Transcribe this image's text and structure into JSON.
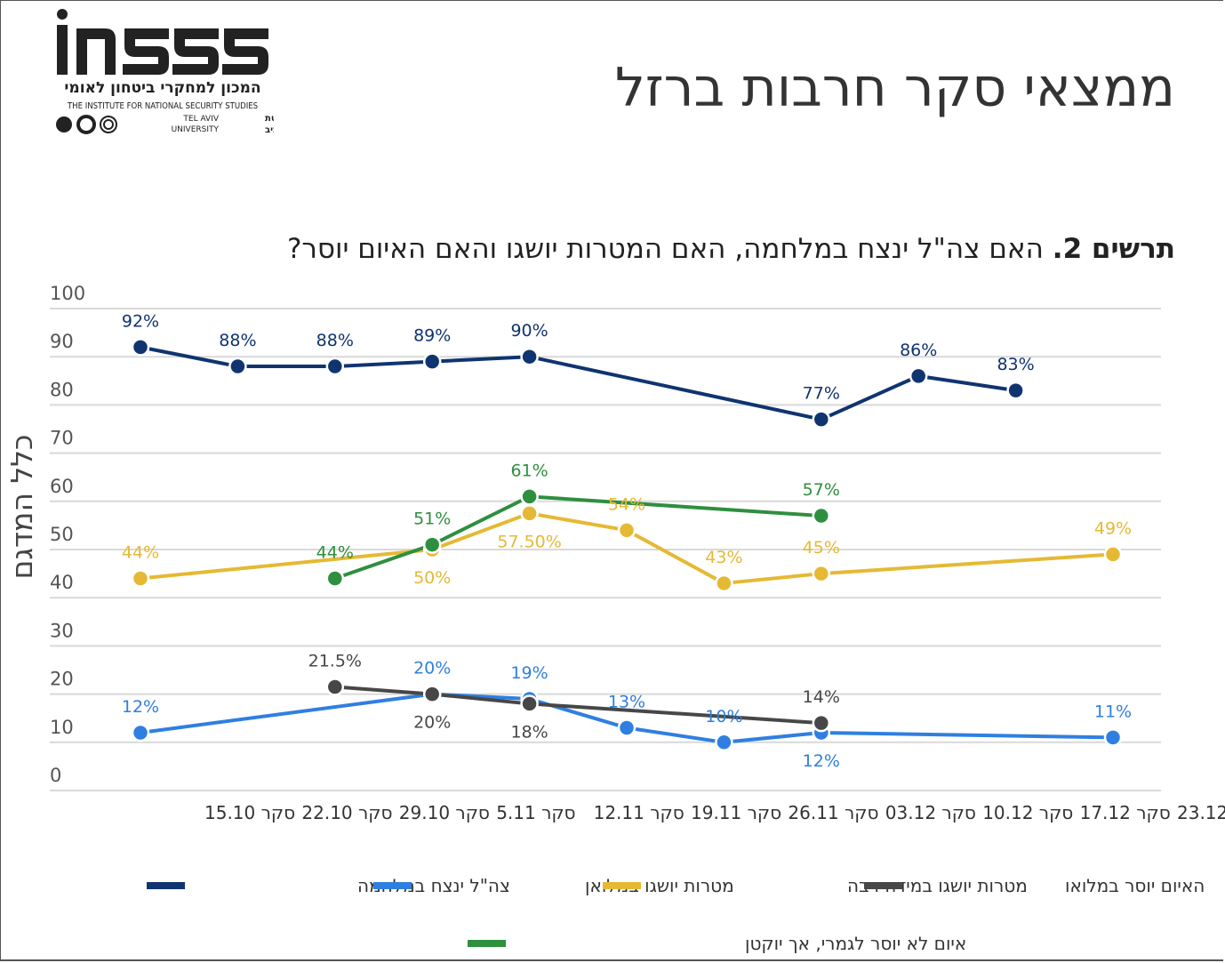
{
  "header": {
    "logo": {
      "wordmark": "INSS",
      "hebrew_name": "המכון למחקרי ביטחון לאומי",
      "english_name": "THE INSTITUTE FOR NATIONAL SECURITY STUDIES",
      "university_en_1": "TEL AVIV",
      "university_en_2": "UNIVERSITY",
      "university_he_1": "אוניברסיטת",
      "university_he_2": "תל אביב"
    },
    "title": "ממצאי סקר חרבות ברזל"
  },
  "chart_title": {
    "prefix": "תרשים 2.",
    "text": "האם צה\"ל ינצח במלחמה, האם המטרות יושגו והאם האיום יוסר?"
  },
  "chart_data": {
    "type": "line",
    "title": "תרשים 2. האם צה\"ל ינצח במלחמה, האם המטרות יושגו והאם האיום יוסר?",
    "ylabel": "כלל המדגם",
    "xlabel": "",
    "ylim": [
      0,
      100
    ],
    "yticks": [
      0,
      10,
      20,
      30,
      40,
      50,
      60,
      70,
      80,
      90,
      100
    ],
    "grid": true,
    "legend_position": "bottom",
    "categories": [
      "סקר 15.10",
      "סקר 22.10",
      "סקר 29.10",
      "סקר 5.11",
      "סקר 12.11",
      "סקר 19.11",
      "סקר 26.11",
      "סקר 03.12",
      "סקר 10.12",
      "סקר 17.12",
      "סקר 23.12"
    ],
    "series": [
      {
        "name": "צה\"ל ינצח במלחמה",
        "color": "#0f3470",
        "values": [
          92,
          88,
          88,
          89,
          90,
          null,
          null,
          77,
          86,
          83,
          null
        ],
        "labels": [
          "92%",
          "88%",
          "88%",
          "89%",
          "90%",
          null,
          null,
          "77%",
          "86%",
          "83%",
          null
        ],
        "label_pos": [
          "above",
          "above",
          "above",
          "above",
          "above",
          null,
          null,
          "above",
          "above",
          "above",
          null
        ]
      },
      {
        "name": "מטרות יושגו במלואן",
        "color": "#2f7fe0",
        "values": [
          12,
          null,
          null,
          20,
          19,
          13,
          10,
          12,
          null,
          null,
          11
        ],
        "labels": [
          "12%",
          null,
          null,
          "20%",
          "19%",
          "13%",
          "10%",
          "12%",
          null,
          null,
          "11%"
        ],
        "label_pos": [
          "above",
          null,
          null,
          "above",
          "above",
          "above",
          "above",
          "below",
          null,
          null,
          "above"
        ]
      },
      {
        "name": "מטרות יושגו במידה רבה",
        "color": "#e5b934",
        "values": [
          44,
          null,
          null,
          50,
          57.5,
          54,
          43,
          45,
          null,
          null,
          49
        ],
        "labels": [
          "44%",
          null,
          null,
          "50%",
          "57.50%",
          "54%",
          "43%",
          "45%",
          null,
          null,
          "49%"
        ],
        "label_pos": [
          "above",
          null,
          null,
          "below",
          "below",
          "above",
          "above",
          "above",
          null,
          null,
          "above"
        ]
      },
      {
        "name": "האיום יוסר במלואו",
        "color": "#474747",
        "values": [
          null,
          null,
          21.5,
          20,
          18,
          null,
          null,
          14,
          null,
          null,
          null
        ],
        "labels": [
          null,
          null,
          "21.5%",
          "20%",
          "18%",
          null,
          null,
          "14%",
          null,
          null,
          null
        ],
        "label_pos": [
          null,
          null,
          "above",
          "below",
          "below",
          null,
          null,
          "above",
          null,
          null,
          null
        ]
      },
      {
        "name": "איום לא יוסר לגמרי, אך יוקטן",
        "color": "#2e8f3e",
        "values": [
          null,
          null,
          44,
          51,
          61,
          null,
          null,
          57,
          null,
          null,
          null
        ],
        "labels": [
          null,
          null,
          "44%",
          "51%",
          "61%",
          null,
          null,
          "57%",
          null,
          null,
          null
        ],
        "label_pos": [
          null,
          null,
          "above",
          "above",
          "above",
          null,
          null,
          "above",
          null,
          null,
          null
        ]
      }
    ],
    "legend_order": [
      0,
      1,
      2,
      3,
      4
    ]
  }
}
